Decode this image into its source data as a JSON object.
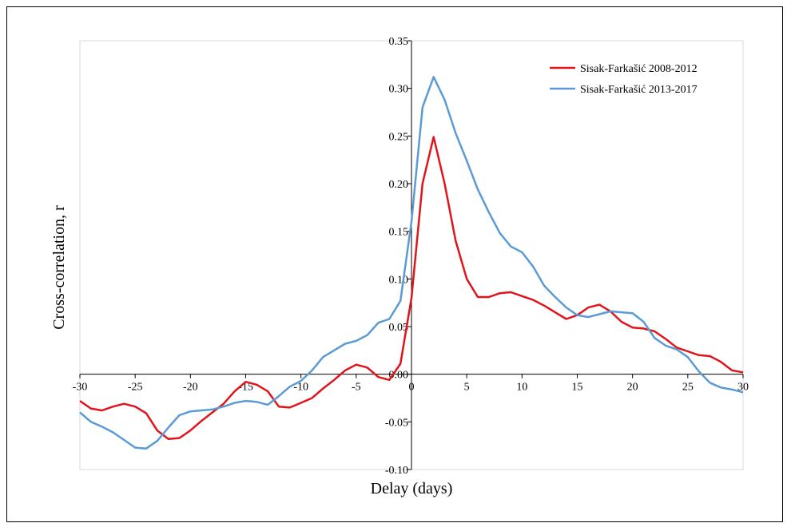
{
  "chart_data": {
    "type": "line",
    "xlabel": "Delay (days)",
    "ylabel": "Cross-correlation, r",
    "xlim": [
      -30,
      30
    ],
    "ylim": [
      -0.1,
      0.35
    ],
    "xticks": [
      -30,
      -25,
      -20,
      -15,
      -10,
      -5,
      0,
      5,
      10,
      15,
      20,
      25,
      30
    ],
    "yticks": [
      "-0.10",
      "-0.05",
      "0.00",
      "0.05",
      "0.10",
      "0.15",
      "0.20",
      "0.25",
      "0.30",
      "0.35"
    ],
    "legend_position": "top-right",
    "grid": false,
    "x": [
      -30,
      -29,
      -28,
      -27,
      -26,
      -25,
      -24,
      -23,
      -22,
      -21,
      -20,
      -19,
      -18,
      -17,
      -16,
      -15,
      -14,
      -13,
      -12,
      -11,
      -10,
      -9,
      -8,
      -7,
      -6,
      -5,
      -4,
      -3,
      -2,
      -1,
      0,
      1,
      2,
      3,
      4,
      5,
      6,
      7,
      8,
      9,
      10,
      11,
      12,
      13,
      14,
      15,
      16,
      17,
      18,
      19,
      20,
      21,
      22,
      23,
      24,
      25,
      26,
      27,
      28,
      29,
      30
    ],
    "series": [
      {
        "name": "Sisak-Farkašić 2008-2012",
        "color": "#e0141a",
        "values": [
          -0.028,
          -0.036,
          -0.038,
          -0.034,
          -0.031,
          -0.034,
          -0.041,
          -0.059,
          -0.068,
          -0.067,
          -0.059,
          -0.049,
          -0.04,
          -0.031,
          -0.018,
          -0.008,
          -0.011,
          -0.018,
          -0.034,
          -0.035,
          -0.03,
          -0.025,
          -0.015,
          -0.006,
          0.004,
          0.01,
          0.007,
          -0.003,
          -0.006,
          0.011,
          0.08,
          0.2,
          0.249,
          0.2,
          0.14,
          0.1,
          0.081,
          0.081,
          0.085,
          0.086,
          0.082,
          0.078,
          0.072,
          0.065,
          0.058,
          0.062,
          0.07,
          0.073,
          0.066,
          0.055,
          0.049,
          0.048,
          0.045,
          0.037,
          0.028,
          0.024,
          0.02,
          0.019,
          0.013,
          0.004,
          0.002
        ]
      },
      {
        "name": "Sisak-Farkašić 2013-2017",
        "color": "#5b9bd5",
        "values": [
          -0.04,
          -0.05,
          -0.055,
          -0.061,
          -0.069,
          -0.077,
          -0.078,
          -0.07,
          -0.056,
          -0.043,
          -0.039,
          -0.038,
          -0.037,
          -0.034,
          -0.03,
          -0.028,
          -0.029,
          -0.032,
          -0.023,
          -0.013,
          -0.007,
          0.004,
          0.018,
          0.025,
          0.032,
          0.035,
          0.041,
          0.054,
          0.058,
          0.077,
          0.16,
          0.28,
          0.312,
          0.288,
          0.253,
          0.224,
          0.194,
          0.17,
          0.148,
          0.134,
          0.128,
          0.113,
          0.093,
          0.081,
          0.07,
          0.062,
          0.06,
          0.063,
          0.066,
          0.065,
          0.064,
          0.055,
          0.038,
          0.03,
          0.026,
          0.018,
          0.003,
          -0.009,
          -0.014,
          -0.016,
          -0.019
        ]
      }
    ]
  }
}
